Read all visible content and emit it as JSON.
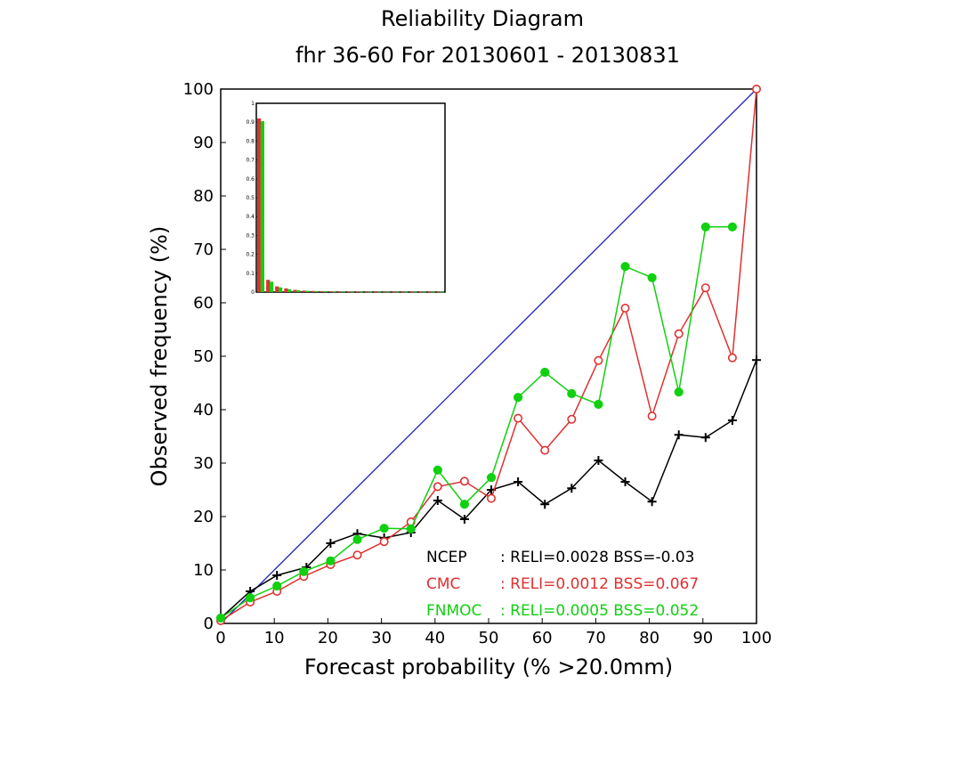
{
  "chart_data": {
    "type": "line",
    "title": "Reliability Diagram",
    "subtitle": "fhr 36-60 For 20130601 - 20130831",
    "xlabel": "Forecast probability (% >20.0mm)",
    "ylabel": "Observed frequency (%)",
    "xlim": [
      0,
      100
    ],
    "ylim": [
      0,
      100
    ],
    "xticks": [
      "0",
      "10",
      "20",
      "30",
      "40",
      "50",
      "60",
      "70",
      "80",
      "90",
      "100"
    ],
    "yticks": [
      "0",
      "10",
      "20",
      "30",
      "40",
      "50",
      "60",
      "70",
      "80",
      "90",
      "100"
    ],
    "diagonal_color": "#2020c0",
    "series": [
      {
        "name": "NCEP",
        "color": "#000000",
        "marker": "plus",
        "x": [
          0,
          5.5,
          10.5,
          16,
          20.5,
          25.5,
          30.5,
          35.5,
          40.5,
          45.5,
          50.5,
          55.5,
          60.5,
          65.5,
          70.5,
          75.5,
          80.5,
          85.5,
          90.5,
          95.5,
          100
        ],
        "y": [
          1,
          6,
          9,
          10.5,
          15,
          16.8,
          16,
          17,
          23,
          19.5,
          25,
          26.5,
          22.3,
          25.3,
          30.5,
          26.5,
          22.8,
          35.3,
          34.8,
          38,
          49.3
        ]
      },
      {
        "name": "CMC",
        "color": "#e03030",
        "marker": "open-circle",
        "x": [
          0,
          5.5,
          10.5,
          15.5,
          20.5,
          25.5,
          30.5,
          35.5,
          40.5,
          45.5,
          50.5,
          55.5,
          60.5,
          65.5,
          70.5,
          75.5,
          80.5,
          85.5,
          90.5,
          95.5,
          100
        ],
        "y": [
          0.5,
          4,
          6,
          8.8,
          11,
          12.8,
          15.3,
          19,
          25.6,
          26.6,
          23.4,
          38.4,
          32.4,
          38.2,
          49.2,
          59,
          38.8,
          54.2,
          62.8,
          49.7,
          100
        ]
      },
      {
        "name": "FNMOC",
        "color": "#10d010",
        "marker": "filled-circle",
        "x": [
          0,
          5.5,
          10.5,
          15.5,
          20.5,
          25.5,
          30.5,
          35.5,
          40.5,
          45.5,
          50.5,
          55.5,
          60.5,
          65.5,
          70.5,
          75.5,
          80.5,
          85.5,
          90.5,
          95.5
        ],
        "y": [
          1,
          4.8,
          7,
          9.7,
          11.7,
          15.7,
          17.8,
          17.7,
          28.7,
          22.3,
          27.3,
          42.3,
          47,
          43,
          41,
          66.8,
          64.7,
          43.3,
          74.2,
          74.2
        ]
      }
    ],
    "legend": [
      {
        "name": "NCEP",
        "stats": ": RELI=0.0028 BSS=-0.03",
        "color": "#000000"
      },
      {
        "name": "CMC",
        "stats": ": RELI=0.0012 BSS=0.067",
        "color": "#e03030"
      },
      {
        "name": "FNMOC",
        "stats": ": RELI=0.0005 BSS=0.052",
        "color": "#10d010"
      }
    ],
    "legend_placement": "bottom-right",
    "inset": {
      "type": "bar",
      "description_position": "top-left",
      "yticks": [
        "0",
        "0.1",
        "0.2",
        "0.3",
        "0.4",
        "0.5",
        "0.6",
        "0.7",
        "0.8",
        "0.9",
        "1"
      ],
      "ylim": [
        0,
        1
      ],
      "bins": 21,
      "series": [
        {
          "name": "CMC",
          "color": "#e03030",
          "values": [
            0.92,
            0.065,
            0.03,
            0.02,
            0.012,
            0.008,
            0.006,
            0.005,
            0.004,
            0.003,
            0.003,
            0.003,
            0.002,
            0.002,
            0.002,
            0.002,
            0.002,
            0.002,
            0.002,
            0.002,
            0.002
          ]
        },
        {
          "name": "FNMOC",
          "color": "#10d010",
          "values": [
            0.905,
            0.055,
            0.025,
            0.015,
            0.01,
            0.007,
            0.005,
            0.004,
            0.003,
            0.003,
            0.002,
            0.002,
            0.002,
            0.002,
            0.002,
            0.002,
            0.002,
            0.002,
            0.002,
            0.002,
            0.002
          ]
        }
      ]
    }
  }
}
